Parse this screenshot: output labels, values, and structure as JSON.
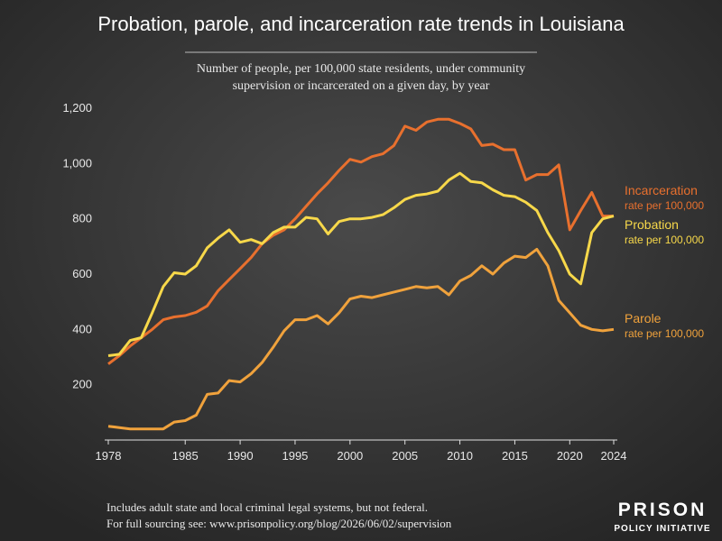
{
  "chart_data": {
    "type": "line",
    "title": "Probation, parole, and incarceration rate trends in Louisiana",
    "subtitle": [
      "Number of people, per 100,000 state residents, under community",
      "supervision or incarcerated on a given day, by year"
    ],
    "x": [
      1978,
      1979,
      1980,
      1981,
      1982,
      1983,
      1984,
      1985,
      1986,
      1987,
      1988,
      1989,
      1990,
      1991,
      1992,
      1993,
      1994,
      1995,
      1996,
      1997,
      1998,
      1999,
      2000,
      2001,
      2002,
      2003,
      2004,
      2005,
      2006,
      2007,
      2008,
      2009,
      2010,
      2011,
      2012,
      2013,
      2014,
      2015,
      2016,
      2017,
      2018,
      2019,
      2020,
      2021,
      2022,
      2023,
      2024
    ],
    "xlim": [
      1978,
      2024
    ],
    "xticks": [
      1978,
      1985,
      1990,
      1995,
      2000,
      2005,
      2010,
      2015,
      2020,
      2024
    ],
    "ylim": [
      0,
      1200
    ],
    "yticks": [
      200,
      400,
      600,
      800,
      {
        "value": 1000,
        "label": "1,000"
      },
      {
        "value": 1200,
        "label": "1,200"
      }
    ],
    "grid": false,
    "series": [
      {
        "name": "Incarceration",
        "sublabel": "rate per 100,000",
        "color": "#e8702e",
        "values": [
          275,
          305,
          340,
          370,
          400,
          435,
          445,
          450,
          462,
          485,
          540,
          580,
          620,
          660,
          710,
          740,
          760,
          800,
          845,
          890,
          930,
          975,
          1015,
          1005,
          1025,
          1035,
          1065,
          1135,
          1120,
          1150,
          1160,
          1160,
          1145,
          1125,
          1065,
          1070,
          1050,
          1050,
          940,
          960,
          960,
          995,
          760,
          830,
          895,
          810,
          810
        ]
      },
      {
        "name": "Probation",
        "sublabel": "rate per 100,000",
        "color": "#f7d84a",
        "values": [
          305,
          310,
          360,
          370,
          460,
          555,
          605,
          600,
          630,
          695,
          730,
          760,
          715,
          725,
          710,
          750,
          770,
          770,
          805,
          800,
          745,
          790,
          800,
          800,
          805,
          815,
          840,
          870,
          885,
          890,
          900,
          940,
          965,
          935,
          930,
          905,
          885,
          880,
          860,
          830,
          750,
          685,
          600,
          565,
          750,
          800,
          810
        ]
      },
      {
        "name": "Parole",
        "sublabel": "rate per 100,000",
        "color": "#f0a23c",
        "values": [
          50,
          45,
          40,
          40,
          40,
          40,
          65,
          70,
          90,
          165,
          170,
          215,
          210,
          240,
          280,
          335,
          395,
          435,
          435,
          450,
          420,
          460,
          510,
          520,
          515,
          525,
          535,
          545,
          555,
          550,
          555,
          525,
          575,
          595,
          630,
          600,
          640,
          665,
          660,
          690,
          630,
          505,
          460,
          415,
          400,
          395,
          400
        ]
      }
    ],
    "notes": [
      "Includes adult state and local criminal legal systems, but not federal.",
      "For full sourcing see: www.prisonpolicy.org/blog/2026/06/02/supervision"
    ],
    "logo": [
      "PRISON",
      "POLICY INITIATIVE"
    ]
  }
}
